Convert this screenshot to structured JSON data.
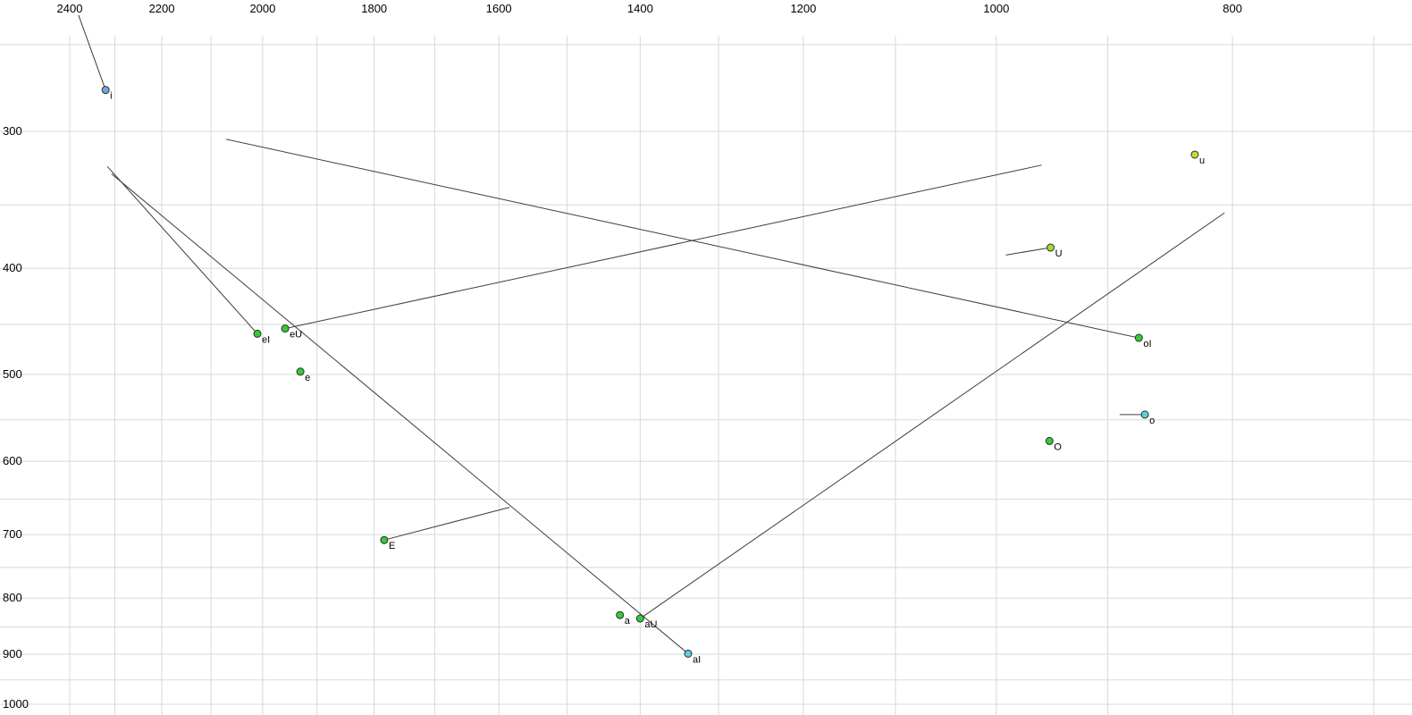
{
  "chart_data": {
    "type": "scatter",
    "title": "",
    "xlabel": "",
    "ylabel": "",
    "description": "Vowel formant plot (F2 horizontal reversed log scale on top axis, F1 vertical log scale on left axis) with diphthong glide trajectories",
    "x_axis": {
      "orientation": "top",
      "unit": "Hz",
      "scale": "log",
      "reversed": true,
      "ticks": [
        2400,
        2200,
        2000,
        1800,
        1600,
        1400,
        1200,
        1000,
        800
      ],
      "gridlines": [
        2400,
        2300,
        2200,
        2100,
        2000,
        1900,
        1800,
        1700,
        1600,
        1500,
        1400,
        1300,
        1200,
        1100,
        1000,
        900,
        800,
        700
      ]
    },
    "y_axis": {
      "orientation": "left",
      "unit": "Hz",
      "scale": "log",
      "reversed": false,
      "ticks": [
        300,
        400,
        500,
        600,
        700,
        800,
        900,
        1000
      ],
      "gridlines": [
        250,
        300,
        350,
        400,
        450,
        500,
        550,
        600,
        650,
        700,
        750,
        800,
        850,
        900,
        950,
        1000
      ]
    },
    "points": [
      {
        "label": "i",
        "f2": 2320,
        "f1": 275,
        "color": "#6fa8dc",
        "glide_to": {
          "f2": 2380,
          "f1": 235
        }
      },
      {
        "label": "u",
        "f2": 829,
        "f1": 315,
        "color": "#ccd92e",
        "glide_to": null
      },
      {
        "label": "U",
        "f2": 950,
        "f1": 383,
        "color": "#a4d92e",
        "glide_to": {
          "f2": 991,
          "f1": 389
        }
      },
      {
        "label": "e",
        "f2": 1930,
        "f1": 497,
        "color": "#33cc33",
        "glide_to": null
      },
      {
        "label": "E",
        "f2": 1783,
        "f1": 708,
        "color": "#33cc33",
        "glide_to": {
          "f2": 1584,
          "f1": 661
        }
      },
      {
        "label": "a",
        "f2": 1427,
        "f1": 829,
        "color": "#33cc33",
        "glide_to": null
      },
      {
        "label": "O",
        "f2": 951,
        "f1": 575,
        "color": "#33cc33",
        "glide_to": null
      },
      {
        "label": "o",
        "f2": 869,
        "f1": 544,
        "color": "#5ecfdb",
        "glide_to": {
          "f2": 890,
          "f1": 544
        }
      },
      {
        "label": "eI",
        "f2": 2010,
        "f1": 459,
        "color": "#33cc33",
        "glide_to": {
          "f2": 2316,
          "f1": 323
        }
      },
      {
        "label": "eU",
        "f2": 1958,
        "f1": 454,
        "color": "#33cc33",
        "glide_to": {
          "f2": 958,
          "f1": 322
        }
      },
      {
        "label": "oI",
        "f2": 874,
        "f1": 463,
        "color": "#33cc33",
        "glide_to": {
          "f2": 2070,
          "f1": 305
        }
      },
      {
        "label": "aU",
        "f2": 1400,
        "f1": 835,
        "color": "#33cc33",
        "glide_to": {
          "f2": 806,
          "f1": 356
        }
      },
      {
        "label": "aI",
        "f2": 1338,
        "f1": 899,
        "color": "#5ecfdb",
        "glide_to": {
          "f2": 2307,
          "f1": 328
        }
      }
    ],
    "style": {
      "background_color": "#ffffff",
      "grid_color": "#d8d8d8",
      "trajectory_color": "#3c3c3c",
      "point_outline": "#2f2f2f",
      "tick_label_color": "#000000",
      "point_label_color": "#000000"
    }
  }
}
